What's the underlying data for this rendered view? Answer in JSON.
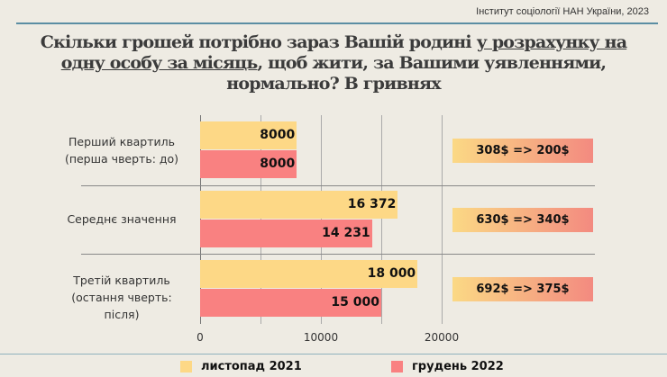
{
  "source": "Інститут соціології НАН України, 2023",
  "title": {
    "part1": "Скільки грошей потрібно зараз Вашій родині ",
    "underlined": "у розрахунку на одну особу за місяць",
    "part2": ", щоб жити, за Вашими уявленнями, нормально? В гривнях"
  },
  "chart_data": {
    "type": "bar",
    "orientation": "horizontal",
    "categories": [
      {
        "line1": "Перший квартиль",
        "line2": "(перша чверть: до)"
      },
      {
        "line1": "Середнє значення",
        "line2": ""
      },
      {
        "line1": "Третій квартиль",
        "line2": "(остання чверть: після)"
      }
    ],
    "series": [
      {
        "name": "листопад 2021",
        "color": "#fdd886",
        "values": [
          8000,
          16372,
          18000
        ],
        "labels": [
          "8000",
          "16 372",
          "18 000"
        ]
      },
      {
        "name": "грудень 2022",
        "color": "#f98181",
        "values": [
          8000,
          14231,
          15000
        ],
        "labels": [
          "8000",
          "14 231",
          "15 000"
        ]
      }
    ],
    "xlim": [
      0,
      20000
    ],
    "x_ticks": [
      "0",
      "10000",
      "20000"
    ],
    "grid": true,
    "legend": "bottom",
    "annotations": [
      "308$ => 200$",
      "630$ => 340$",
      "692$ => 375$"
    ]
  }
}
